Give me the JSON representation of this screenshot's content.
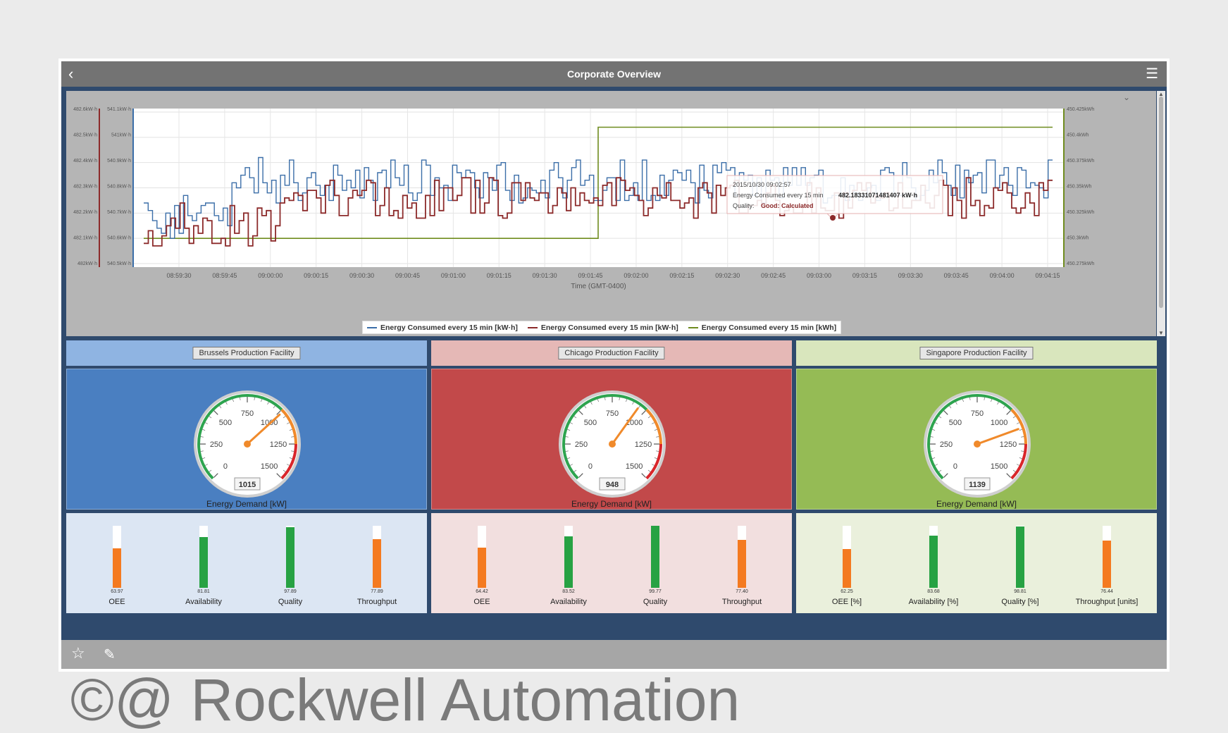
{
  "window": {
    "title": "Corporate Overview",
    "back_icon": "chevron-left-icon",
    "menu_icon": "hamburger-icon"
  },
  "trend": {
    "tooltip": {
      "time": "2015/10/30 09:02:57",
      "series_label": "Energy Consumed every 15 min",
      "value": "482.18331071481407 kW·h",
      "quality_label": "Quality:",
      "quality_value": "Good: Calculated"
    },
    "legend": [
      {
        "label": "Energy Consumed every 15 min [kW·h]",
        "color": "#3b6ea8"
      },
      {
        "label": "Energy Consumed every 15 min [kW·h]",
        "color": "#8c2a2a"
      },
      {
        "label": "Energy Consumed every 15 min [kWh]",
        "color": "#6f8c1f"
      }
    ]
  },
  "chart_data": {
    "type": "line",
    "xlabel": "Time (GMT-0400)",
    "x_ticks": [
      "08:59:30",
      "08:59:45",
      "09:00:00",
      "09:00:15",
      "09:00:30",
      "09:00:45",
      "09:01:00",
      "09:01:15",
      "09:01:30",
      "09:01:45",
      "09:02:00",
      "09:02:15",
      "09:02:30",
      "09:02:45",
      "09:03:00",
      "09:03:15",
      "09:03:30",
      "09:03:45",
      "09:04:00",
      "09:04:15"
    ],
    "axis_red_ticks": [
      "482.6kW·h",
      "482.5kW·h",
      "482.4kW·h",
      "482.3kW·h",
      "482.2kW·h",
      "482.1kW·h",
      "482kW·h"
    ],
    "axis_blue_ticks": [
      "541.1kW·h",
      "541kW·h",
      "540.9kW·h",
      "540.8kW·h",
      "540.7kW·h",
      "540.6kW·h",
      "540.5kW·h"
    ],
    "axis_green_ticks": [
      "450.425kWh",
      "450.4kWh",
      "450.375kWh",
      "450.35kWh",
      "450.325kWh",
      "450.3kWh",
      "450.275kWh"
    ],
    "series": [
      {
        "color": "#3b6ea8",
        "step": true,
        "values": [
          540.74,
          540.71,
          540.67,
          540.64,
          540.62,
          540.7,
          540.6,
          540.73,
          540.62,
          540.77,
          540.69,
          540.67,
          540.7,
          540.73,
          540.74,
          540.74,
          540.69,
          540.67,
          540.72,
          540.65,
          540.82,
          540.8,
          540.85,
          540.88,
          540.84,
          540.78,
          540.92,
          540.82,
          540.78,
          540.83,
          540.74,
          540.85,
          540.81,
          540.91,
          540.82,
          540.75,
          540.78,
          540.84,
          540.86,
          540.81,
          540.77,
          540.81,
          540.75,
          540.89,
          540.85,
          540.79,
          540.83,
          540.8,
          540.87,
          540.76,
          540.88,
          540.83,
          540.75,
          540.86,
          540.87,
          540.8,
          540.91,
          540.84,
          540.81,
          540.89,
          540.78,
          540.75,
          540.78,
          540.91,
          540.89,
          540.77,
          540.84,
          540.8,
          540.81,
          540.75,
          540.89,
          540.86,
          540.84,
          540.87,
          540.86,
          540.8,
          540.76,
          540.86,
          540.84,
          540.79,
          540.89,
          540.9,
          540.79,
          540.75,
          540.85,
          540.74,
          540.76,
          540.8,
          540.79,
          540.78,
          540.83,
          540.76,
          540.87,
          540.9,
          540.84,
          540.76,
          540.83,
          540.88,
          540.91,
          540.81,
          540.83,
          540.85,
          540.75,
          540.75,
          540.79,
          540.84,
          540.84,
          540.75,
          540.91,
          540.75,
          540.77,
          540.82,
          540.75,
          540.91,
          540.75,
          540.77,
          540.75,
          540.85,
          540.77,
          540.83,
          540.87,
          540.86,
          540.83,
          540.87,
          540.82,
          540.74,
          540.89,
          540.79,
          540.76,
          540.89,
          540.86,
          540.9,
          540.87,
          540.88,
          540.77,
          540.86,
          540.83,
          540.85,
          540.77,
          540.84,
          540.74,
          540.87,
          540.83,
          540.84,
          540.76,
          540.88,
          540.81,
          540.88,
          540.81,
          540.88,
          540.81,
          540.84,
          540.85,
          540.87,
          540.74,
          540.76,
          540.77,
          540.77,
          540.84,
          540.75,
          540.81,
          540.78,
          540.75,
          540.77,
          540.8,
          540.81,
          540.75,
          540.87,
          540.88,
          540.86,
          540.77,
          540.77,
          540.9,
          540.84,
          540.8,
          540.75,
          540.77,
          540.79,
          540.87,
          540.82,
          540.91,
          540.86,
          540.81,
          540.77,
          540.89,
          540.76,
          540.87,
          540.82,
          540.85,
          540.86,
          540.78,
          540.91,
          540.91,
          540.8,
          540.85,
          540.88,
          540.81,
          540.77,
          540.88,
          540.87,
          540.8,
          540.82,
          540.81,
          540.8,
          540.76,
          540.91
        ]
      },
      {
        "color": "#8c2a2a",
        "step": true,
        "values": [
          482.08,
          482.13,
          482.07,
          482.07,
          482.11,
          482.15,
          482.18,
          482.14,
          482.24,
          482.14,
          482.08,
          482.15,
          482.12,
          482.18,
          482.17,
          482.08,
          482.08,
          482.1,
          482.07,
          482.23,
          482.12,
          482.17,
          482.2,
          482.07,
          482.11,
          482.22,
          482.19,
          482.21,
          482.09,
          482.15,
          482.24,
          482.26,
          482.25,
          482.28,
          482.27,
          482.21,
          482.29,
          482.29,
          482.26,
          482.2,
          482.31,
          482.33,
          482.27,
          482.19,
          482.19,
          482.26,
          482.29,
          482.27,
          482.29,
          482.33,
          482.32,
          482.19,
          482.23,
          482.3,
          482.19,
          482.21,
          482.18,
          482.27,
          482.22,
          482.24,
          482.18,
          482.18,
          482.27,
          482.19,
          482.33,
          482.21,
          482.3,
          482.3,
          482.25,
          482.27,
          482.34,
          482.34,
          482.2,
          482.33,
          482.2,
          482.24,
          482.34,
          482.33,
          482.19,
          482.18,
          482.2,
          482.32,
          482.32,
          482.25,
          482.32,
          482.26,
          482.25,
          482.28,
          482.28,
          482.2,
          482.23,
          482.3,
          482.28,
          482.21,
          482.3,
          482.23,
          482.28,
          482.25,
          482.24,
          482.26,
          482.23,
          482.31,
          482.32,
          482.23,
          482.34,
          482.33,
          482.29,
          482.3,
          482.27,
          482.25,
          482.19,
          482.22,
          482.3,
          482.27,
          482.26,
          482.32,
          482.25,
          482.25,
          482.22,
          482.24,
          482.26,
          482.18,
          482.3,
          482.32,
          482.28,
          482.2,
          482.31,
          482.27,
          482.3,
          482.31,
          482.33,
          482.2,
          482.2,
          482.23,
          482.23,
          482.25,
          482.23,
          482.28,
          482.31,
          482.25,
          482.19,
          482.21,
          482.23,
          482.2,
          482.2,
          482.23,
          482.32,
          482.2,
          482.3,
          482.22,
          482.21,
          482.21,
          482.28,
          482.18,
          482.28,
          482.22,
          482.29,
          482.32,
          482.29,
          482.32,
          482.24,
          482.27,
          482.26,
          482.28,
          482.21,
          482.22,
          482.32,
          482.22,
          482.22,
          482.25,
          482.25,
          482.31,
          482.24,
          482.22,
          482.27,
          482.33,
          482.31,
          482.19,
          482.3,
          482.25,
          482.18,
          482.34,
          482.23,
          482.25,
          482.19,
          482.23,
          482.22,
          482.3,
          482.29,
          482.32,
          482.28,
          482.22,
          482.2,
          482.22,
          482.28,
          482.24,
          482.19,
          482.32,
          482.29,
          482.33
        ]
      },
      {
        "color": "#6f8c1f",
        "step": true,
        "values": [
          450.3,
          450.3,
          450.41,
          450.41
        ]
      }
    ]
  },
  "facilities": [
    {
      "name": "Brussels Production Facility",
      "header_color": "#8fb4e2",
      "panel_color": "#4a7fc1",
      "kpi_color": "#dce6f3",
      "gauge": {
        "value": 1015,
        "readout": "1015",
        "label": "Energy Demand [kW]",
        "ticks": [
          "0",
          "250",
          "500",
          "750",
          "1000",
          "1250",
          "1500"
        ]
      },
      "kpis": [
        {
          "label": "OEE",
          "value_text": "63.97",
          "value": 63.97,
          "color": "#f47a20"
        },
        {
          "label": "Availability",
          "value_text": "81.81",
          "value": 81.81,
          "color": "#27a243"
        },
        {
          "label": "Quality",
          "value_text": "97.89",
          "value": 97.89,
          "color": "#27a243"
        },
        {
          "label": "Throughput",
          "value_text": "77.89",
          "value": 77.89,
          "color": "#f47a20"
        }
      ]
    },
    {
      "name": "Chicago Production Facility",
      "header_color": "#e5b8b6",
      "panel_color": "#c2494a",
      "kpi_color": "#f2dfdf",
      "gauge": {
        "value": 948,
        "readout": "948",
        "label": "Energy Demand [kW]",
        "ticks": [
          "0",
          "250",
          "500",
          "750",
          "1000",
          "1250",
          "1500"
        ]
      },
      "kpis": [
        {
          "label": "OEE",
          "value_text": "64.42",
          "value": 64.42,
          "color": "#f47a20"
        },
        {
          "label": "Availability",
          "value_text": "83.52",
          "value": 83.52,
          "color": "#27a243"
        },
        {
          "label": "Quality",
          "value_text": "99.77",
          "value": 99.77,
          "color": "#27a243"
        },
        {
          "label": "Throughput",
          "value_text": "77.40",
          "value": 77.4,
          "color": "#f47a20"
        }
      ]
    },
    {
      "name": "Singapore Production Facility",
      "header_color": "#d9e6bd",
      "panel_color": "#95bb55",
      "kpi_color": "#eaf0dc",
      "gauge": {
        "value": 1139,
        "readout": "1139",
        "label": "Energy Demand [kW]",
        "ticks": [
          "0",
          "250",
          "500",
          "750",
          "1000",
          "1250",
          "1500"
        ]
      },
      "kpis": [
        {
          "label": "OEE [%]",
          "value_text": "62.25",
          "value": 62.25,
          "color": "#f47a20"
        },
        {
          "label": "Availability [%]",
          "value_text": "83.68",
          "value": 83.68,
          "color": "#27a243"
        },
        {
          "label": "Quality [%]",
          "value_text": "98.81",
          "value": 98.81,
          "color": "#27a243"
        },
        {
          "label": "Throughput [units]",
          "value_text": "76.44",
          "value": 76.44,
          "color": "#f47a20"
        }
      ]
    }
  ],
  "footer": {
    "icons": [
      "star-icon",
      "pencil-icon"
    ]
  },
  "watermark": "©@ Rockwell Automation"
}
